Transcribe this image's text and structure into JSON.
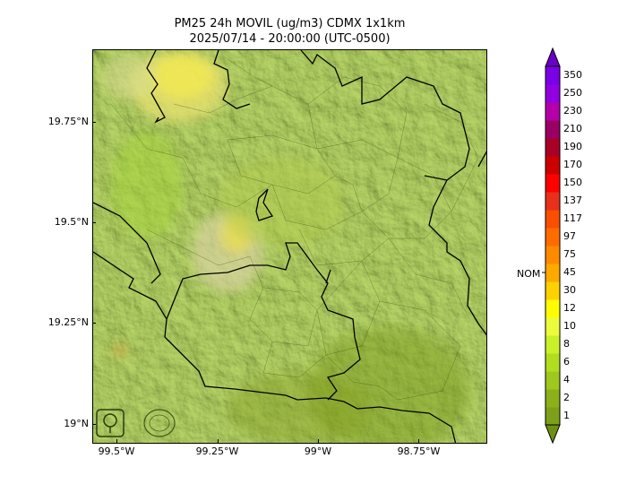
{
  "header": {
    "title": "PM25 24h MOVIL (ug/m3) CDMX 1x1km",
    "subtitle": "2025/07/14 - 20:00:00 (UTC-0500)"
  },
  "map": {
    "extent": {
      "lon_min": -99.56,
      "lon_max": -98.58,
      "lat_min": 18.95,
      "lat_max": 19.93
    },
    "lat_ticks": [
      {
        "value": 19.75,
        "label": "19.75°N"
      },
      {
        "value": 19.5,
        "label": "19.5°N"
      },
      {
        "value": 19.25,
        "label": "19.25°N"
      },
      {
        "value": 19.0,
        "label": "19°N"
      }
    ],
    "lon_ticks": [
      {
        "value": -99.5,
        "label": "99.5°W"
      },
      {
        "value": -99.25,
        "label": "99.25°W"
      },
      {
        "value": -99.0,
        "label": "99°W"
      },
      {
        "value": -98.75,
        "label": "98.75°W"
      }
    ],
    "base_color": "#8fb02a",
    "logos": [
      "sedema-logo",
      "secretaria-seal"
    ]
  },
  "colorbar": {
    "labels": [
      "1",
      "2",
      "4",
      "6",
      "8",
      "10",
      "12",
      "30",
      "45",
      "75",
      "97",
      "117",
      "137",
      "150",
      "170",
      "190",
      "210",
      "230",
      "250",
      "350"
    ],
    "colors": [
      "#7da018",
      "#8cb01a",
      "#9ec81e",
      "#b2dc20",
      "#caf02a",
      "#ecfb3c",
      "#fdfc02",
      "#fed200",
      "#fea800",
      "#ff8a00",
      "#fe6c00",
      "#fa4e00",
      "#e8301a",
      "#ff0000",
      "#cc0000",
      "#a80027",
      "#9a0063",
      "#b400aa",
      "#9200e0",
      "#7a00e6"
    ],
    "over_color": "#6a00c8",
    "under_color": "#6e9010",
    "nom_label": "NOM",
    "nom_value": "45"
  }
}
